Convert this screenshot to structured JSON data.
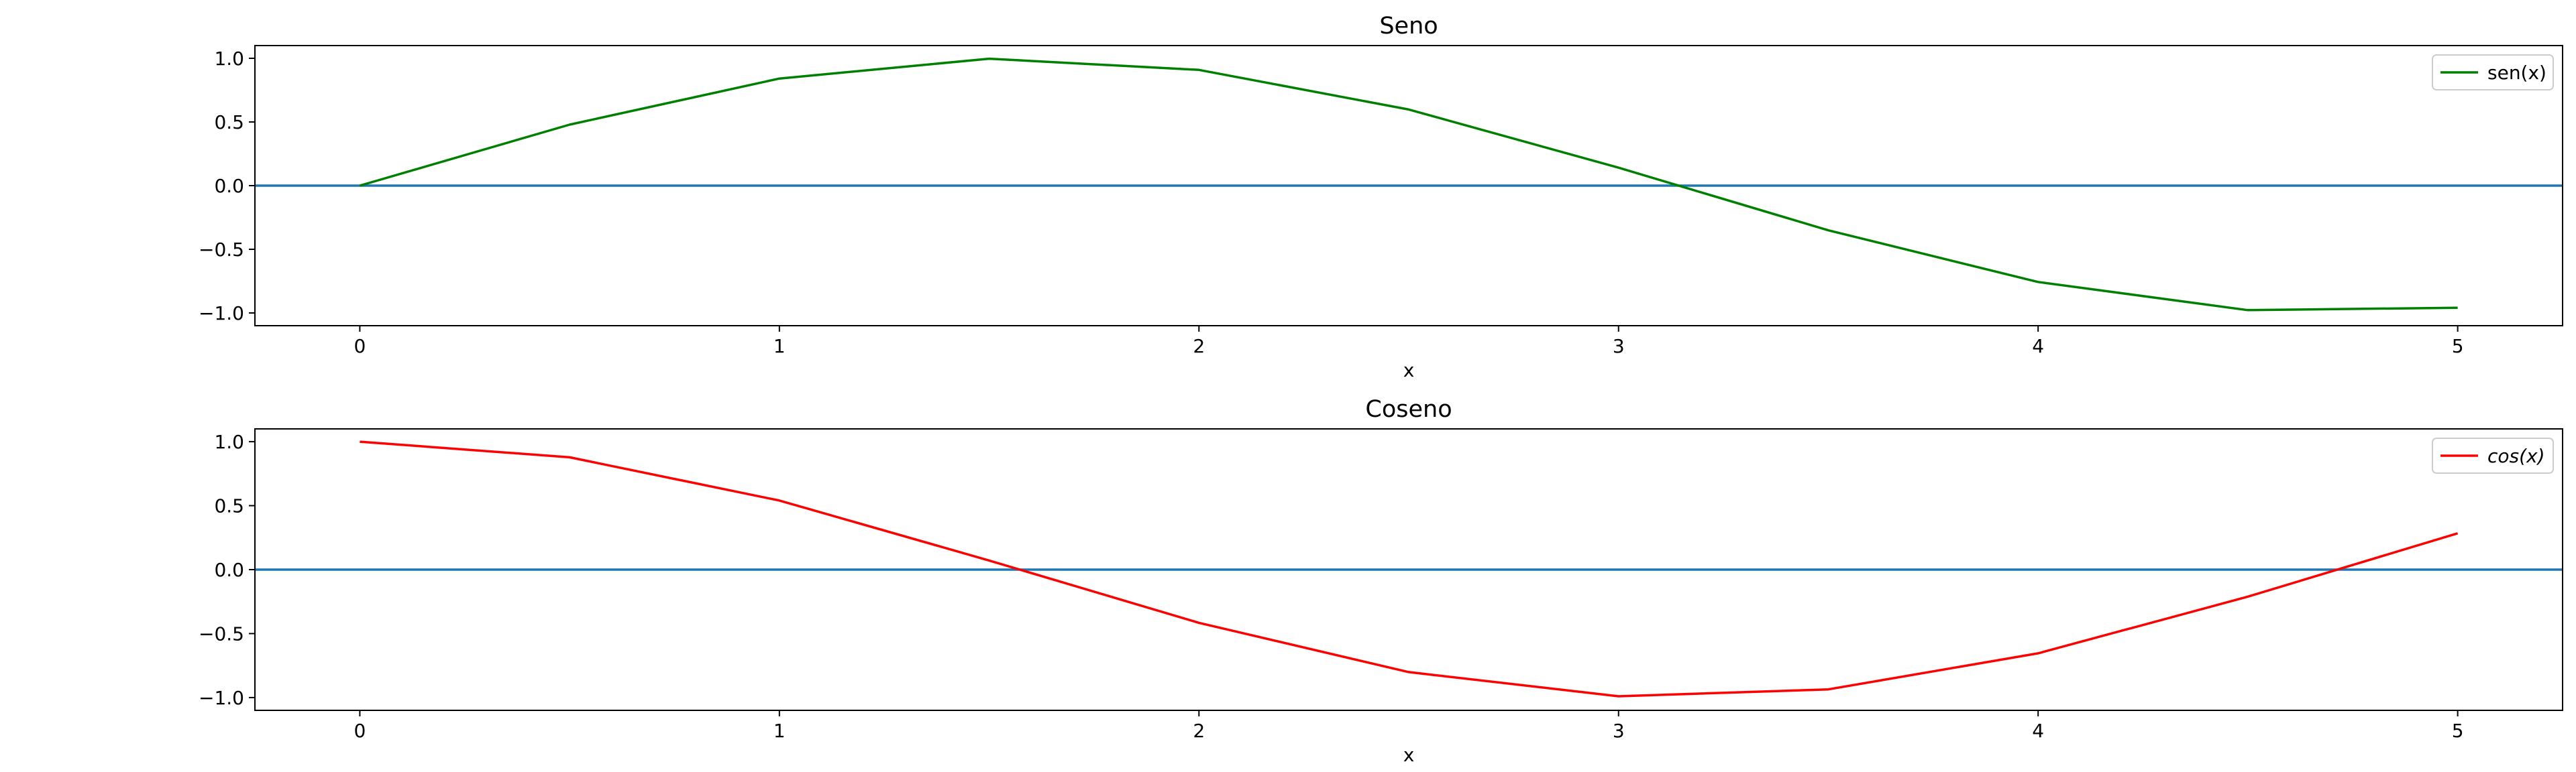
{
  "chart_data": [
    {
      "type": "line",
      "title": "Seno",
      "xlabel": "x",
      "ylabel": "",
      "xlim": [
        -0.25,
        5.25
      ],
      "ylim": [
        -1.1,
        1.1
      ],
      "xticks": [
        0,
        1,
        2,
        3,
        4,
        5
      ],
      "xtick_labels": [
        "0",
        "1",
        "2",
        "3",
        "4",
        "5"
      ],
      "yticks": [
        1.0,
        0.5,
        0.0,
        -0.5,
        -1.0
      ],
      "ytick_labels": [
        "1.0",
        "0.5",
        "0.0",
        "−0.5",
        "−1.0"
      ],
      "grid": false,
      "legend_position": "top-right",
      "hline": {
        "y": 0,
        "color": "#1f77b4"
      },
      "x": [
        0,
        0.5,
        1,
        1.5,
        2,
        2.5,
        3,
        3.5,
        4,
        4.5,
        5
      ],
      "series": [
        {
          "name": "sen(x)",
          "color": "#008000",
          "values": [
            0.0,
            0.479,
            0.841,
            0.997,
            0.909,
            0.598,
            0.141,
            -0.351,
            -0.757,
            -0.978,
            -0.959
          ]
        }
      ]
    },
    {
      "type": "line",
      "title": "Coseno",
      "xlabel": "x",
      "ylabel": "",
      "xlim": [
        -0.25,
        5.25
      ],
      "ylim": [
        -1.1,
        1.1
      ],
      "xticks": [
        0,
        1,
        2,
        3,
        4,
        5
      ],
      "xtick_labels": [
        "0",
        "1",
        "2",
        "3",
        "4",
        "5"
      ],
      "yticks": [
        1.0,
        0.5,
        0.0,
        -0.5,
        -1.0
      ],
      "ytick_labels": [
        "1.0",
        "0.5",
        "0.0",
        "−0.5",
        "−1.0"
      ],
      "grid": false,
      "legend_position": "top-right",
      "hline": {
        "y": 0,
        "color": "#1f77b4"
      },
      "x": [
        0,
        0.5,
        1,
        1.5,
        2,
        2.5,
        3,
        3.5,
        4,
        4.5,
        5
      ],
      "series": [
        {
          "name": "cos(x)",
          "italic": true,
          "color": "#ff0000",
          "values": [
            1.0,
            0.878,
            0.54,
            0.071,
            -0.416,
            -0.801,
            -0.99,
            -0.936,
            -0.654,
            -0.211,
            0.284
          ]
        }
      ]
    }
  ]
}
